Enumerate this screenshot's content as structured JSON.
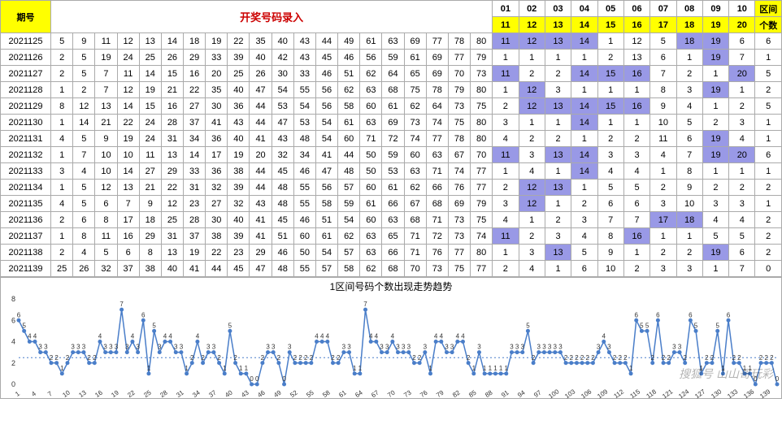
{
  "headers": {
    "period": "期号",
    "entry": "开奖号码录入",
    "zone_label": "区间",
    "count_label": "个数",
    "top_nums": [
      "01",
      "02",
      "03",
      "04",
      "05",
      "06",
      "07",
      "08",
      "09",
      "10"
    ],
    "bottom_nums": [
      "11",
      "12",
      "13",
      "14",
      "15",
      "16",
      "17",
      "18",
      "19",
      "20"
    ]
  },
  "rows": [
    {
      "period": "2021125",
      "nums": [
        5,
        9,
        11,
        12,
        13,
        14,
        18,
        19,
        22,
        35,
        40,
        43,
        44,
        49,
        61,
        63,
        69,
        77,
        78,
        80
      ],
      "zone": [
        {
          "v": 11,
          "h": 1
        },
        {
          "v": 12,
          "h": 1
        },
        {
          "v": 13,
          "h": 1
        },
        {
          "v": 14,
          "h": 1
        },
        {
          "v": 1,
          "h": 0
        },
        {
          "v": 12,
          "h": 0
        },
        {
          "v": 5,
          "h": 0
        },
        {
          "v": 18,
          "h": 1
        },
        {
          "v": 19,
          "h": 1
        },
        {
          "v": 6,
          "h": 0
        }
      ],
      "count": 6
    },
    {
      "period": "2021126",
      "nums": [
        2,
        5,
        19,
        24,
        25,
        26,
        29,
        33,
        39,
        40,
        42,
        43,
        45,
        46,
        56,
        59,
        61,
        69,
        77,
        79
      ],
      "zone": [
        {
          "v": 1,
          "h": 0
        },
        {
          "v": 1,
          "h": 0
        },
        {
          "v": 1,
          "h": 0
        },
        {
          "v": 1,
          "h": 0
        },
        {
          "v": 2,
          "h": 0
        },
        {
          "v": 13,
          "h": 0
        },
        {
          "v": 6,
          "h": 0
        },
        {
          "v": 1,
          "h": 0
        },
        {
          "v": 19,
          "h": 1
        },
        {
          "v": 7,
          "h": 0
        }
      ],
      "count": 1
    },
    {
      "period": "2021127",
      "nums": [
        2,
        5,
        7,
        11,
        14,
        15,
        16,
        20,
        25,
        26,
        30,
        33,
        46,
        51,
        62,
        64,
        65,
        69,
        70,
        73
      ],
      "zone": [
        {
          "v": 11,
          "h": 1
        },
        {
          "v": 2,
          "h": 0
        },
        {
          "v": 2,
          "h": 0
        },
        {
          "v": 14,
          "h": 1
        },
        {
          "v": 15,
          "h": 1
        },
        {
          "v": 16,
          "h": 1
        },
        {
          "v": 7,
          "h": 0
        },
        {
          "v": 2,
          "h": 0
        },
        {
          "v": 1,
          "h": 0
        },
        {
          "v": 20,
          "h": 1
        }
      ],
      "count": 5
    },
    {
      "period": "2021128",
      "nums": [
        1,
        2,
        7,
        12,
        19,
        21,
        22,
        35,
        40,
        47,
        54,
        55,
        56,
        62,
        63,
        68,
        75,
        78,
        79,
        80
      ],
      "zone": [
        {
          "v": 1,
          "h": 0
        },
        {
          "v": 12,
          "h": 1
        },
        {
          "v": 3,
          "h": 0
        },
        {
          "v": 1,
          "h": 0
        },
        {
          "v": 1,
          "h": 0
        },
        {
          "v": 1,
          "h": 0
        },
        {
          "v": 8,
          "h": 0
        },
        {
          "v": 3,
          "h": 0
        },
        {
          "v": 19,
          "h": 1
        },
        {
          "v": 1,
          "h": 0
        }
      ],
      "count": 2
    },
    {
      "period": "2021129",
      "nums": [
        8,
        12,
        13,
        14,
        15,
        16,
        27,
        30,
        36,
        44,
        53,
        54,
        56,
        58,
        60,
        61,
        62,
        64,
        73,
        75
      ],
      "zone": [
        {
          "v": 2,
          "h": 0
        },
        {
          "v": 12,
          "h": 1
        },
        {
          "v": 13,
          "h": 1
        },
        {
          "v": 14,
          "h": 1
        },
        {
          "v": 15,
          "h": 1
        },
        {
          "v": 16,
          "h": 1
        },
        {
          "v": 9,
          "h": 0
        },
        {
          "v": 4,
          "h": 0
        },
        {
          "v": 1,
          "h": 0
        },
        {
          "v": 2,
          "h": 0
        }
      ],
      "count": 5
    },
    {
      "period": "2021130",
      "nums": [
        1,
        14,
        21,
        22,
        24,
        28,
        37,
        41,
        43,
        44,
        47,
        53,
        54,
        61,
        63,
        69,
        73,
        74,
        75,
        80
      ],
      "zone": [
        {
          "v": 3,
          "h": 0
        },
        {
          "v": 1,
          "h": 0
        },
        {
          "v": 1,
          "h": 0
        },
        {
          "v": 14,
          "h": 1
        },
        {
          "v": 1,
          "h": 0
        },
        {
          "v": 1,
          "h": 0
        },
        {
          "v": 10,
          "h": 0
        },
        {
          "v": 5,
          "h": 0
        },
        {
          "v": 2,
          "h": 0
        },
        {
          "v": 3,
          "h": 0
        }
      ],
      "count": 1
    },
    {
      "period": "2021131",
      "nums": [
        4,
        5,
        9,
        19,
        24,
        31,
        34,
        36,
        40,
        41,
        43,
        48,
        54,
        60,
        71,
        72,
        74,
        77,
        78,
        80
      ],
      "zone": [
        {
          "v": 4,
          "h": 0
        },
        {
          "v": 2,
          "h": 0
        },
        {
          "v": 2,
          "h": 0
        },
        {
          "v": 1,
          "h": 0
        },
        {
          "v": 2,
          "h": 0
        },
        {
          "v": 2,
          "h": 0
        },
        {
          "v": 11,
          "h": 0
        },
        {
          "v": 6,
          "h": 0
        },
        {
          "v": 19,
          "h": 1
        },
        {
          "v": 4,
          "h": 0
        }
      ],
      "count": 1
    },
    {
      "period": "2021132",
      "nums": [
        1,
        7,
        10,
        10,
        11,
        13,
        14,
        17,
        19,
        20,
        32,
        34,
        41,
        44,
        50,
        59,
        60,
        63,
        67,
        70
      ],
      "zone": [
        {
          "v": 11,
          "h": 1
        },
        {
          "v": 3,
          "h": 0
        },
        {
          "v": 13,
          "h": 1
        },
        {
          "v": 14,
          "h": 1
        },
        {
          "v": 3,
          "h": 0
        },
        {
          "v": 3,
          "h": 0
        },
        {
          "v": 4,
          "h": 0
        },
        {
          "v": 7,
          "h": 0
        },
        {
          "v": 19,
          "h": 1
        },
        {
          "v": 20,
          "h": 1
        }
      ],
      "count": 6
    },
    {
      "period": "2021133",
      "nums": [
        3,
        4,
        10,
        14,
        27,
        29,
        33,
        36,
        38,
        44,
        45,
        46,
        47,
        48,
        50,
        53,
        63,
        71,
        74,
        77
      ],
      "zone": [
        {
          "v": 1,
          "h": 0
        },
        {
          "v": 4,
          "h": 0
        },
        {
          "v": 1,
          "h": 0
        },
        {
          "v": 14,
          "h": 1
        },
        {
          "v": 4,
          "h": 0
        },
        {
          "v": 4,
          "h": 0
        },
        {
          "v": 1,
          "h": 0
        },
        {
          "v": 8,
          "h": 0
        },
        {
          "v": 1,
          "h": 0
        },
        {
          "v": 1,
          "h": 0
        }
      ],
      "count": 1
    },
    {
      "period": "2021134",
      "nums": [
        1,
        5,
        12,
        13,
        21,
        22,
        31,
        32,
        39,
        44,
        48,
        55,
        56,
        57,
        60,
        61,
        62,
        66,
        76,
        77
      ],
      "zone": [
        {
          "v": 2,
          "h": 0
        },
        {
          "v": 12,
          "h": 1
        },
        {
          "v": 13,
          "h": 1
        },
        {
          "v": 1,
          "h": 0
        },
        {
          "v": 5,
          "h": 0
        },
        {
          "v": 5,
          "h": 0
        },
        {
          "v": 2,
          "h": 0
        },
        {
          "v": 9,
          "h": 0
        },
        {
          "v": 2,
          "h": 0
        },
        {
          "v": 2,
          "h": 0
        }
      ],
      "count": 2
    },
    {
      "period": "2021135",
      "nums": [
        4,
        5,
        6,
        7,
        9,
        12,
        23,
        27,
        32,
        43,
        48,
        55,
        58,
        59,
        61,
        66,
        67,
        68,
        69,
        79
      ],
      "zone": [
        {
          "v": 3,
          "h": 0
        },
        {
          "v": 12,
          "h": 1
        },
        {
          "v": 1,
          "h": 0
        },
        {
          "v": 2,
          "h": 0
        },
        {
          "v": 6,
          "h": 0
        },
        {
          "v": 6,
          "h": 0
        },
        {
          "v": 3,
          "h": 0
        },
        {
          "v": 10,
          "h": 0
        },
        {
          "v": 3,
          "h": 0
        },
        {
          "v": 3,
          "h": 0
        }
      ],
      "count": 1
    },
    {
      "period": "2021136",
      "nums": [
        2,
        6,
        8,
        17,
        18,
        25,
        28,
        30,
        40,
        41,
        45,
        46,
        51,
        54,
        60,
        63,
        68,
        71,
        73,
        75
      ],
      "zone": [
        {
          "v": 4,
          "h": 0
        },
        {
          "v": 1,
          "h": 0
        },
        {
          "v": 2,
          "h": 0
        },
        {
          "v": 3,
          "h": 0
        },
        {
          "v": 7,
          "h": 0
        },
        {
          "v": 7,
          "h": 0
        },
        {
          "v": 17,
          "h": 1
        },
        {
          "v": 18,
          "h": 1
        },
        {
          "v": 4,
          "h": 0
        },
        {
          "v": 4,
          "h": 0
        }
      ],
      "count": 2
    },
    {
      "period": "2021137",
      "nums": [
        1,
        8,
        11,
        16,
        29,
        31,
        37,
        38,
        39,
        41,
        51,
        60,
        61,
        62,
        63,
        65,
        71,
        72,
        73,
        74
      ],
      "zone": [
        {
          "v": 11,
          "h": 1
        },
        {
          "v": 2,
          "h": 0
        },
        {
          "v": 3,
          "h": 0
        },
        {
          "v": 4,
          "h": 0
        },
        {
          "v": 8,
          "h": 0
        },
        {
          "v": 16,
          "h": 1
        },
        {
          "v": 1,
          "h": 0
        },
        {
          "v": 1,
          "h": 0
        },
        {
          "v": 5,
          "h": 0
        },
        {
          "v": 5,
          "h": 0
        }
      ],
      "count": 2
    },
    {
      "period": "2021138",
      "nums": [
        2,
        4,
        5,
        6,
        8,
        13,
        19,
        22,
        23,
        29,
        46,
        50,
        54,
        57,
        63,
        66,
        71,
        76,
        77,
        80
      ],
      "zone": [
        {
          "v": 1,
          "h": 0
        },
        {
          "v": 3,
          "h": 0
        },
        {
          "v": 13,
          "h": 1
        },
        {
          "v": 5,
          "h": 0
        },
        {
          "v": 9,
          "h": 0
        },
        {
          "v": 1,
          "h": 0
        },
        {
          "v": 2,
          "h": 0
        },
        {
          "v": 2,
          "h": 0
        },
        {
          "v": 19,
          "h": 1
        },
        {
          "v": 6,
          "h": 0
        }
      ],
      "count": 2
    },
    {
      "period": "2021139",
      "nums": [
        25,
        26,
        32,
        37,
        38,
        40,
        41,
        44,
        45,
        47,
        48,
        55,
        57,
        58,
        62,
        68,
        70,
        73,
        75,
        77
      ],
      "zone": [
        {
          "v": 2,
          "h": 0
        },
        {
          "v": 4,
          "h": 0
        },
        {
          "v": 1,
          "h": 0
        },
        {
          "v": 6,
          "h": 0
        },
        {
          "v": 10,
          "h": 0
        },
        {
          "v": 2,
          "h": 0
        },
        {
          "v": 3,
          "h": 0
        },
        {
          "v": 3,
          "h": 0
        },
        {
          "v": 1,
          "h": 0
        },
        {
          "v": 7,
          "h": 0
        }
      ],
      "count": 0
    }
  ],
  "chart": {
    "title": "1区间号码个数出现走势趋势",
    "y_min": 0,
    "y_max": 8,
    "y_ticks": [
      0,
      2,
      4,
      6,
      8
    ],
    "x_labels": [
      "1",
      "4",
      "7",
      "10",
      "13",
      "16",
      "19",
      "22",
      "25",
      "28",
      "31",
      "34",
      "37",
      "40",
      "43",
      "46",
      "49",
      "52",
      "55",
      "58",
      "61",
      "64",
      "67",
      "70",
      "73",
      "76",
      "79",
      "82",
      "85",
      "88",
      "91",
      "94",
      "97",
      "100",
      "103",
      "106",
      "109",
      "112",
      "115",
      "118",
      "121",
      "124",
      "127",
      "130",
      "133",
      "136",
      "139"
    ],
    "values": [
      6,
      5,
      4,
      4,
      3,
      3,
      2,
      2,
      1,
      2,
      3,
      3,
      3,
      2,
      2,
      4,
      3,
      3,
      3,
      7,
      3,
      4,
      3,
      6,
      1,
      5,
      3,
      4,
      4,
      3,
      3,
      1,
      2,
      4,
      2,
      3,
      3,
      2,
      1,
      5,
      2,
      1,
      1,
      0,
      0,
      2,
      3,
      3,
      2,
      0,
      3,
      2,
      2,
      2,
      2,
      4,
      4,
      4,
      2,
      2,
      3,
      3,
      1,
      1,
      7,
      4,
      4,
      3,
      3,
      4,
      3,
      3,
      3,
      2,
      2,
      3,
      1,
      4,
      4,
      3,
      3,
      4,
      4,
      2,
      1,
      3,
      1,
      1,
      1,
      1,
      1,
      3,
      3,
      3,
      5,
      2,
      3,
      3,
      3,
      3,
      3,
      2,
      2,
      2,
      2,
      2,
      2,
      3,
      4,
      3,
      2,
      2,
      2,
      1,
      6,
      5,
      5,
      2,
      6,
      2,
      2,
      3,
      3,
      2,
      6,
      5,
      1,
      2,
      2,
      5,
      1,
      6,
      2,
      2,
      1,
      1,
      0,
      2,
      2,
      2,
      0
    ],
    "line_color": "#4a7ec9",
    "marker_color": "#4a7ec9",
    "dotted_ref_color": "#4a7ec9",
    "dotted_ref_y": 2.5,
    "bg": "#ffffff",
    "label_font_size": 9,
    "watermark": "搜狐号 山山哥玩彩"
  },
  "colors": {
    "highlight_bg": "#9999e6",
    "yellow_bg": "#ffff00",
    "border": "#aaaaaa"
  }
}
